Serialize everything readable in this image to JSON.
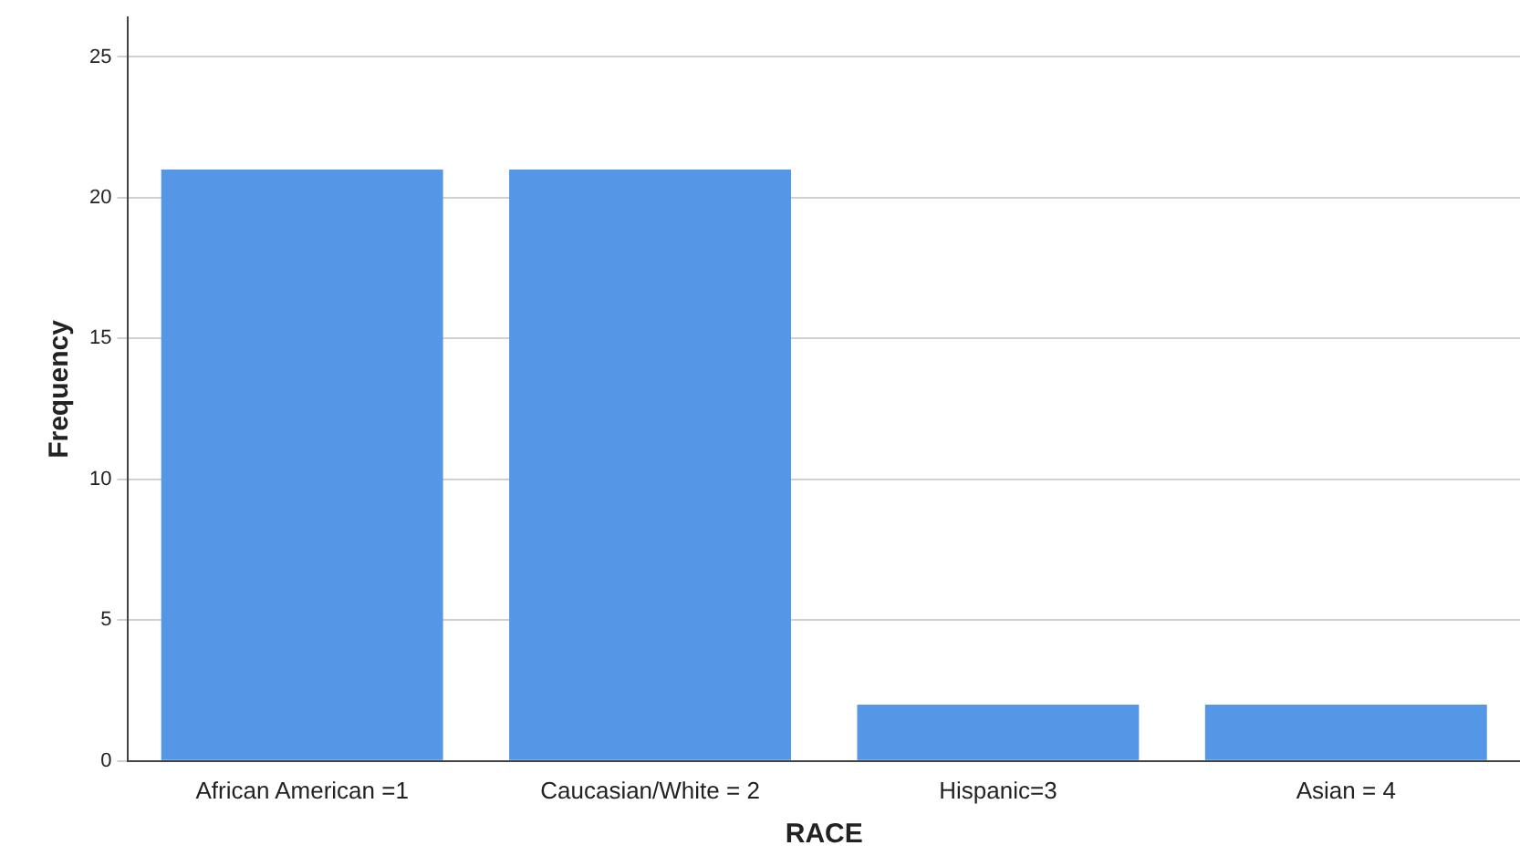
{
  "chart_data": {
    "type": "bar",
    "xlabel": "RACE",
    "ylabel": "Frequency",
    "categories": [
      "African American =1",
      "Caucasian/White = 2",
      "Hispanic=3",
      "Asian = 4"
    ],
    "values": [
      21,
      21,
      2,
      2
    ],
    "color": "#5596e6",
    "ylim": [
      0,
      26.4
    ],
    "yticks": [
      0,
      5,
      10,
      15,
      20,
      25
    ],
    "grid": "y",
    "legend": false
  }
}
